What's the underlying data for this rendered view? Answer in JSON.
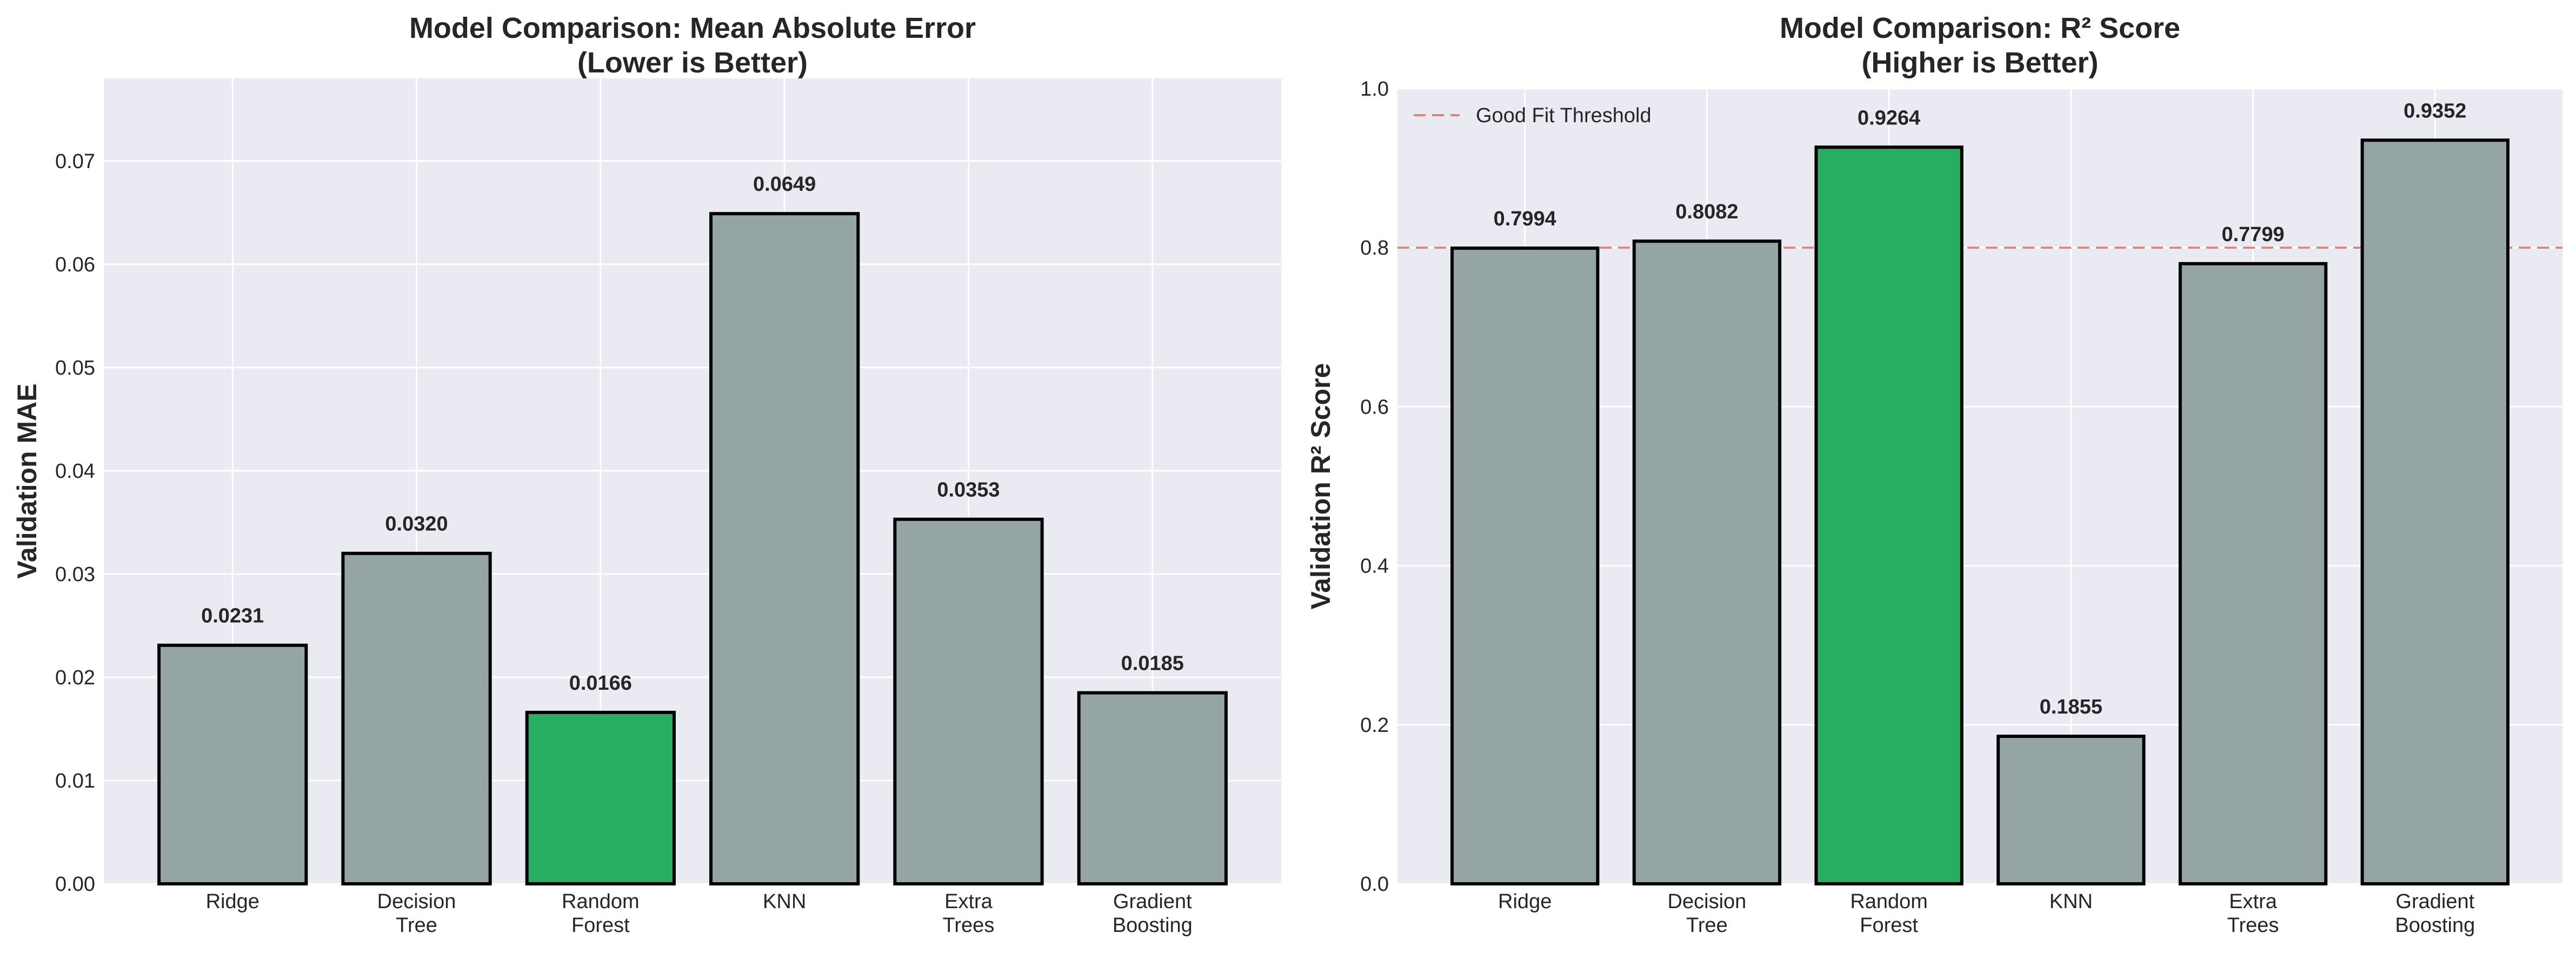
{
  "chart_data": [
    {
      "type": "bar",
      "title_lines": [
        "Model Comparison: Mean Absolute Error",
        "(Lower is Better)"
      ],
      "xlabel": "",
      "ylabel": "Validation MAE",
      "categories": [
        [
          "Ridge"
        ],
        [
          "Decision",
          "Tree"
        ],
        [
          "Random",
          "Forest"
        ],
        [
          "KNN"
        ],
        [
          "Extra",
          "Trees"
        ],
        [
          "Gradient",
          "Boosting"
        ]
      ],
      "values": [
        0.0231,
        0.032,
        0.0166,
        0.0649,
        0.0353,
        0.0185
      ],
      "data_labels": [
        "0.0231",
        "0.0320",
        "0.0166",
        "0.0649",
        "0.0353",
        "0.0185"
      ],
      "ylim": [
        0,
        0.078
      ],
      "yticks": [
        0,
        0.01,
        0.02,
        0.03,
        0.04,
        0.05,
        0.06,
        0.07
      ],
      "ytick_labels": [
        "0.00",
        "0.01",
        "0.02",
        "0.03",
        "0.04",
        "0.05",
        "0.06",
        "0.07"
      ],
      "highlight_index": 2,
      "colors": {
        "bar": "#95a5a6",
        "highlight": "#27ae60",
        "edge": "#000000",
        "background": "#eaeaf2",
        "grid": "#ffffff"
      },
      "grid": true
    },
    {
      "type": "bar",
      "title_lines": [
        "Model Comparison: R² Score",
        "(Higher is Better)"
      ],
      "xlabel": "",
      "ylabel": "Validation R² Score",
      "categories": [
        [
          "Ridge"
        ],
        [
          "Decision",
          "Tree"
        ],
        [
          "Random",
          "Forest"
        ],
        [
          "KNN"
        ],
        [
          "Extra",
          "Trees"
        ],
        [
          "Gradient",
          "Boosting"
        ]
      ],
      "values": [
        0.7994,
        0.8082,
        0.9264,
        0.1855,
        0.7799,
        0.9352
      ],
      "data_labels": [
        "0.7994",
        "0.8082",
        "0.9264",
        "0.1855",
        "0.7799",
        "0.9352"
      ],
      "ylim": [
        0,
        1.0
      ],
      "yticks": [
        0,
        0.2,
        0.4,
        0.6,
        0.8,
        1.0
      ],
      "ytick_labels": [
        "0.0",
        "0.2",
        "0.4",
        "0.6",
        "0.8",
        "1.0"
      ],
      "highlight_index": 2,
      "reference_line": {
        "value": 0.8,
        "label": "Good Fit Threshold",
        "color": "#e74c3c",
        "style": "dashed"
      },
      "legend_position": "top-left",
      "colors": {
        "bar": "#95a5a6",
        "highlight": "#27ae60",
        "edge": "#000000",
        "background": "#eaeaf2",
        "grid": "#ffffff"
      },
      "grid": true
    }
  ]
}
